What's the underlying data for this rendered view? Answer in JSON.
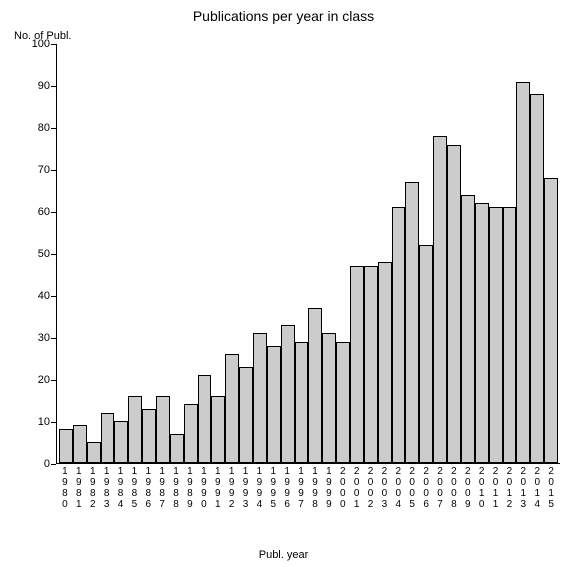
{
  "chart": {
    "type": "bar",
    "title": "Publications per year in class",
    "y_axis_label": "No. of Publ.",
    "x_axis_label": "Publ. year",
    "title_fontsize": 14,
    "label_fontsize": 11,
    "tick_fontsize": 11,
    "xlabel_fontsize": 10,
    "background_color": "#ffffff",
    "bar_fill_color": "#cccccc",
    "bar_border_color": "#000000",
    "axis_color": "#000000",
    "ylim": [
      0,
      100
    ],
    "yticks": [
      0,
      10,
      20,
      30,
      40,
      50,
      60,
      70,
      80,
      90,
      100
    ],
    "categories": [
      "1980",
      "1981",
      "1982",
      "1983",
      "1984",
      "1985",
      "1986",
      "1987",
      "1988",
      "1989",
      "1990",
      "1991",
      "1992",
      "1993",
      "1994",
      "1995",
      "1996",
      "1997",
      "1998",
      "1999",
      "2000",
      "2001",
      "2002",
      "2003",
      "2004",
      "2005",
      "2006",
      "2007",
      "2008",
      "2009",
      "2010",
      "2011",
      "2012",
      "2013",
      "2014",
      "2015"
    ],
    "values": [
      8,
      9,
      5,
      12,
      10,
      16,
      13,
      16,
      7,
      14,
      21,
      16,
      26,
      23,
      31,
      28,
      33,
      29,
      37,
      31,
      29,
      47,
      47,
      48,
      61,
      67,
      52,
      78,
      76,
      64,
      62,
      61,
      61,
      91,
      88,
      68
    ]
  }
}
